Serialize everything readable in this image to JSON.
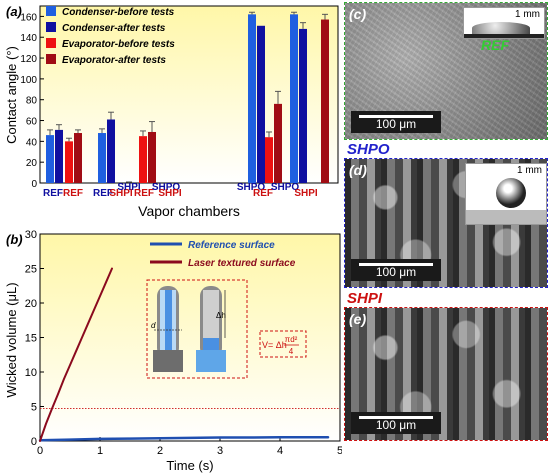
{
  "panel_a": {
    "label": "(a)",
    "ylabel": "Contact angle (°)",
    "xlabel": "Vapor chambers",
    "legend": [
      {
        "label": "Condenser-before tests",
        "color": "#1f5fe0"
      },
      {
        "label": "Condenser-after tests",
        "color": "#1010a0"
      },
      {
        "label": "Evaporator-before tests",
        "color": "#ee1111"
      },
      {
        "label": "Evaporator-after tests",
        "color": "#a00c14"
      }
    ]
  },
  "panel_b": {
    "label": "(b)",
    "ylabel": "Wicked volume (μL)",
    "xlabel": "Time (s)",
    "legend": [
      {
        "label": "Reference surface",
        "color": "#1f4fb0"
      },
      {
        "label": "Laser textured surface",
        "color": "#8b0a1e"
      }
    ],
    "formula": "V= Δh",
    "formula_frac_num": "πd²",
    "formula_frac_den": "4",
    "diagram_label_dh": "Δh",
    "diagram_label_d": "d"
  },
  "panel_c": {
    "label": "(c)",
    "scale": "100 μm",
    "inset_scale": "1 mm",
    "inset_tag": "REF",
    "tag_color": "#33cc33"
  },
  "panel_d": {
    "title": "SHPO",
    "title_color": "#2222cc",
    "label": "(d)",
    "scale": "100 μm",
    "inset_scale": "1 mm"
  },
  "panel_e": {
    "title": "SHPI",
    "title_color": "#cc1111",
    "label": "(e)",
    "scale": "100 μm"
  },
  "chart_data": [
    {
      "type": "bar",
      "title": "",
      "ylabel": "Contact angle (°)",
      "xlabel": "Vapor chambers",
      "ylim": [
        0,
        170
      ],
      "yticks": [
        0,
        20,
        40,
        60,
        80,
        100,
        120,
        140,
        160
      ],
      "bars": [
        {
          "label": "REF",
          "label_color": "#1010a0",
          "series": "Condenser-before tests",
          "color": "#1f5fe0",
          "value": 46,
          "err": 5
        },
        {
          "label": "REF",
          "label_color": "#1010a0",
          "series": "Condenser-after tests",
          "color": "#1010a0",
          "value": 51,
          "err": 5
        },
        {
          "label": "REF",
          "label_color": "#cc1111",
          "series": "Evaporator-before tests",
          "color": "#ee1111",
          "value": 40,
          "err": 3
        },
        {
          "label": "REF",
          "label_color": "#cc1111",
          "series": "Evaporator-after tests",
          "color": "#a00c14",
          "value": 48,
          "err": 3
        },
        {
          "label": "REF",
          "label_color": "#1010a0",
          "series": "Condenser-before tests",
          "color": "#1f5fe0",
          "value": 48,
          "err": 4
        },
        {
          "label": "SHPI",
          "label_color": "#cc1111",
          "series": "Condenser-after tests",
          "color": "#1010a0",
          "value": 61,
          "err": 7
        },
        {
          "label": "SHPI",
          "label_color": "#1010a0",
          "series": "Condenser-before tests",
          "color": "#1f5fe0",
          "value": 0,
          "err": 1
        },
        {
          "label": "REF",
          "label_color": "#cc1111",
          "series": "Evaporator-before tests",
          "color": "#ee1111",
          "value": 45,
          "err": 5
        },
        {
          "label": "REF",
          "label_color": "#cc1111",
          "series": "Evaporator-after tests",
          "color": "#a00c14",
          "value": 49,
          "err": 10
        },
        {
          "label": "SHPI",
          "label_color": "#1010a0",
          "series": "Condenser-before tests",
          "color": "#1f5fe0",
          "value": 0,
          "err": 0
        },
        {
          "label": "SHPI",
          "label_color": "#cc1111",
          "series": "Evaporator-before tests",
          "color": "#ee1111",
          "value": 0,
          "err": 0
        },
        {
          "label": "SHPO",
          "label_color": "#1010a0",
          "series": "Condenser-before tests",
          "color": "#1f5fe0",
          "value": 162,
          "err": 2
        },
        {
          "label": "SHPO",
          "label_color": "#1010a0",
          "series": "Condenser-after tests",
          "color": "#1010a0",
          "value": 151,
          "err": 0
        },
        {
          "label": "REF",
          "label_color": "#cc1111",
          "series": "Evaporator-before tests",
          "color": "#ee1111",
          "value": 44,
          "err": 5
        },
        {
          "label": "REF",
          "label_color": "#cc1111",
          "series": "Evaporator-after tests",
          "color": "#a00c14",
          "value": 76,
          "err": 12
        },
        {
          "label": "SHPO",
          "label_color": "#1010a0",
          "series": "Condenser-before tests",
          "color": "#1f5fe0",
          "value": 162,
          "err": 2
        },
        {
          "label": "SHPO",
          "label_color": "#1010a0",
          "series": "Condenser-after tests",
          "color": "#1010a0",
          "value": 148,
          "err": 6
        },
        {
          "label": "SHPI",
          "label_color": "#cc1111",
          "series": "Evaporator-after tests",
          "color": "#a00c14",
          "value": 157,
          "err": 5
        }
      ],
      "xticklabels": [
        {
          "text": "REF",
          "color": "#1010a0"
        },
        {
          "text": "REF",
          "color": "#cc1111"
        },
        {
          "text": "REF",
          "color": "#1010a0"
        },
        {
          "text": "SHPI",
          "color": "#cc1111"
        },
        {
          "text": "SHPI",
          "color": "#1010a0"
        },
        {
          "text": "REF",
          "color": "#cc1111"
        },
        {
          "text": "SHPO",
          "color": "#1010a0"
        },
        {
          "text": "SHPI",
          "color": "#cc1111"
        },
        {
          "text": "SHPO",
          "color": "#1010a0"
        },
        {
          "text": "REF",
          "color": "#cc1111"
        },
        {
          "text": "SHPO",
          "color": "#1010a0"
        },
        {
          "text": "SHPI",
          "color": "#cc1111"
        }
      ],
      "legend_position": "top-left"
    },
    {
      "type": "line",
      "title": "",
      "xlabel": "Time (s)",
      "ylabel": "Wicked volume (μL)",
      "xlim": [
        0,
        5
      ],
      "ylim": [
        0,
        30
      ],
      "xticks": [
        0,
        1,
        2,
        3,
        4,
        5
      ],
      "yticks": [
        0,
        5,
        10,
        15,
        20,
        25,
        30
      ],
      "series": [
        {
          "name": "Reference surface",
          "color": "#1f4fb0",
          "x": [
            0,
            0.5,
            1,
            1.5,
            2,
            2.5,
            3,
            3.5,
            4,
            4.5,
            4.8
          ],
          "y": [
            0.1,
            0.2,
            0.3,
            0.35,
            0.4,
            0.45,
            0.5,
            0.5,
            0.55,
            0.55,
            0.55
          ]
        },
        {
          "name": "Laser textured surface",
          "color": "#8b0a1e",
          "x": [
            0,
            0.1,
            0.2,
            0.3,
            0.4,
            0.5,
            0.6,
            0.7,
            0.8,
            0.9,
            1.0,
            1.1,
            1.2
          ],
          "y": [
            0,
            2.5,
            4.7,
            6.8,
            9,
            11,
            13,
            15,
            17,
            19,
            21,
            23,
            25
          ]
        }
      ],
      "reference_line_y": 4.7,
      "grid": false,
      "legend_position": "top-right"
    }
  ]
}
